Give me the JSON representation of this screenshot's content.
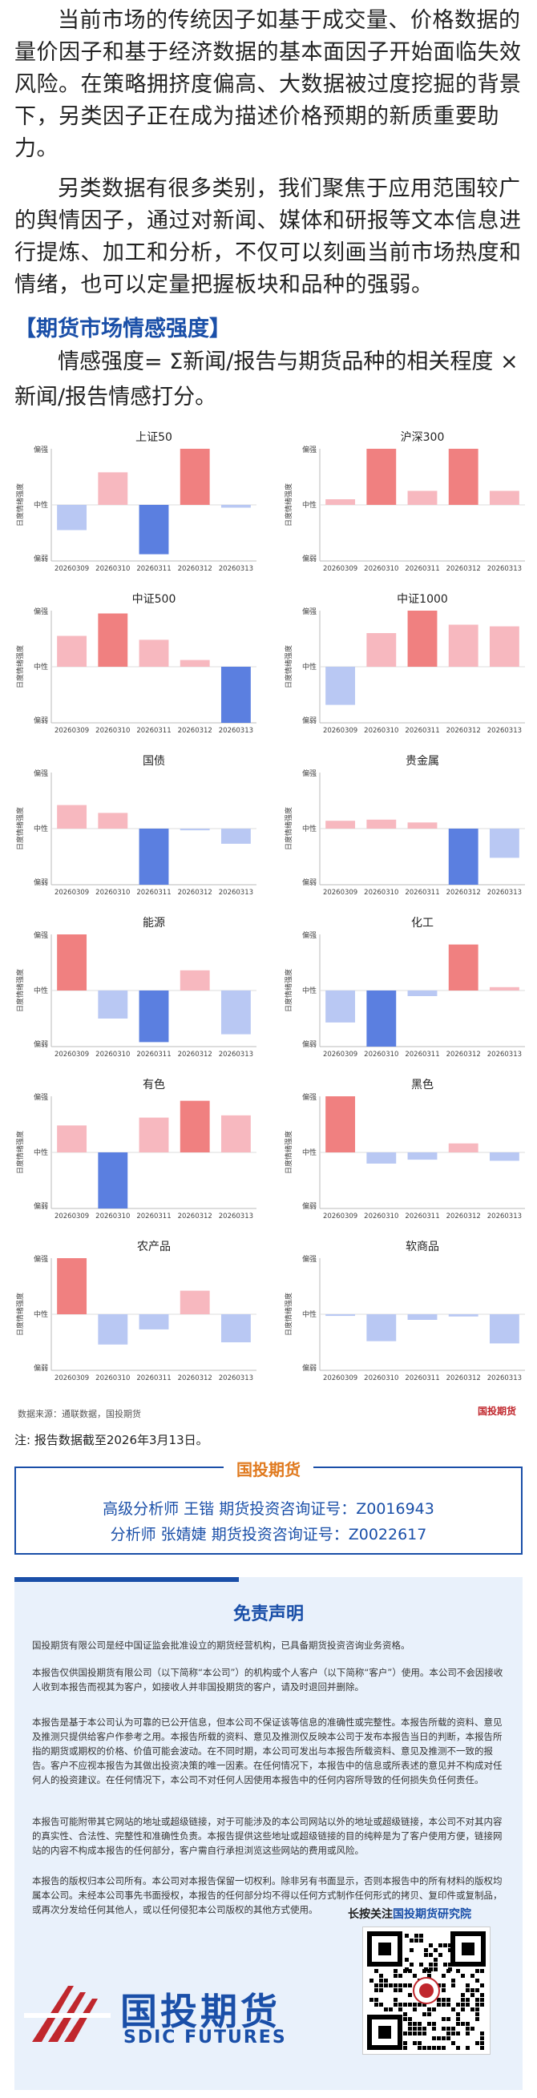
{
  "intro": {
    "p1": "当前市场的传统因子如基于成交量、价格数据的量价因子和基于经济数据的基本面因子开始面临失效风险。在策略拥挤度偏高、大数据被过度挖掘的背景下，另类因子正在成为描述价格预期的新质重要助力。",
    "p2": "另类数据有很多类别，我们聚焦于应用范围较广的舆情因子，通过对新闻、媒体和研报等文本信息进行提炼、加工和分析，不仅可以刻画当前市场热度和情绪，也可以定量把握板块和品种的强弱。"
  },
  "section_title": "【期货市场情感强度】",
  "formula": "情感强度= Σ新闻/报告与期货品种的相关程度 ×新闻/报告情感打分。",
  "axis": {
    "ylabel": "日度情绪强度",
    "top": "偏强",
    "mid": "中性",
    "bottom": "偏弱"
  },
  "colors": {
    "pos_strong": "#f08080",
    "pos_light": "#f7b8bf",
    "neg_strong": "#5b7fe0",
    "neg_light": "#b9c8f3",
    "light_purple": "#d9d3ea"
  },
  "chart_data": [
    {
      "type": "bar",
      "title": "上证50",
      "categories": [
        "20260309",
        "20260310",
        "20260311",
        "20260312",
        "20260313"
      ],
      "values": [
        -0.45,
        0.58,
        -0.88,
        1.0,
        -0.05
      ]
    },
    {
      "type": "bar",
      "title": "沪深300",
      "categories": [
        "20260309",
        "20260310",
        "20260311",
        "20260312",
        "20260313"
      ],
      "values": [
        0.1,
        1.0,
        0.25,
        1.0,
        0.25
      ]
    },
    {
      "type": "bar",
      "title": "中证500",
      "categories": [
        "20260309",
        "20260310",
        "20260311",
        "20260312",
        "20260313"
      ],
      "values": [
        0.55,
        0.95,
        0.48,
        0.12,
        -1.0
      ]
    },
    {
      "type": "bar",
      "title": "中证1000",
      "categories": [
        "20260309",
        "20260310",
        "20260311",
        "20260312",
        "20260313"
      ],
      "values": [
        -0.68,
        0.6,
        1.0,
        0.75,
        0.72
      ]
    },
    {
      "type": "bar",
      "title": "国债",
      "categories": [
        "20260309",
        "20260310",
        "20260311",
        "20260312",
        "20260313"
      ],
      "values": [
        0.42,
        0.28,
        -1.0,
        -0.03,
        -0.27
      ]
    },
    {
      "type": "bar",
      "title": "贵金属",
      "categories": [
        "20260309",
        "20260310",
        "20260311",
        "20260312",
        "20260313"
      ],
      "values": [
        0.14,
        0.16,
        0.11,
        -1.0,
        -0.52
      ]
    },
    {
      "type": "bar",
      "title": "能源",
      "categories": [
        "20260309",
        "20260310",
        "20260311",
        "20260312",
        "20260313"
      ],
      "values": [
        1.0,
        -0.5,
        -0.92,
        0.36,
        -0.78
      ]
    },
    {
      "type": "bar",
      "title": "化工",
      "categories": [
        "20260309",
        "20260310",
        "20260311",
        "20260312",
        "20260313"
      ],
      "values": [
        -0.57,
        -1.0,
        -0.1,
        0.82,
        0.06
      ]
    },
    {
      "type": "bar",
      "title": "有色",
      "categories": [
        "20260309",
        "20260310",
        "20260311",
        "20260312",
        "20260313"
      ],
      "values": [
        0.48,
        -1.0,
        0.62,
        0.92,
        0.66
      ]
    },
    {
      "type": "bar",
      "title": "黑色",
      "categories": [
        "20260309",
        "20260310",
        "20260311",
        "20260312",
        "20260313"
      ],
      "values": [
        1.0,
        -0.2,
        -0.13,
        0.16,
        -0.15
      ]
    },
    {
      "type": "bar",
      "title": "农产品",
      "categories": [
        "20260309",
        "20260310",
        "20260311",
        "20260312",
        "20260313"
      ],
      "values": [
        1.0,
        -0.54,
        -0.27,
        0.42,
        -0.5
      ]
    },
    {
      "type": "bar",
      "title": "软商品",
      "categories": [
        "20260309",
        "20260310",
        "20260311",
        "20260312",
        "20260313"
      ],
      "values": [
        -0.03,
        -0.48,
        -0.1,
        -0.04,
        -0.52
      ]
    }
  ],
  "source": "数据来源：通联数据，国投期货",
  "logo_small": "国投期货",
  "note": "注: 报告数据截至2026年3月13日。",
  "analysts": {
    "title": "国投期货",
    "line1": "高级分析师  王锴  期货投资咨询证号：Z0016943",
    "line2": "分析师  张婧婕 期货投资咨询证号：Z0022617"
  },
  "disclaimer": {
    "title": "免责声明",
    "p1": "国投期货有限公司是经中国证监会批准设立的期货经营机构，已具备期货投资咨询业务资格。",
    "p2": "本报告仅供国投期货有限公司（以下简称“本公司”）的机构或个人客户（以下简称“客户”）使用。本公司不会因接收人收到本报告而视其为客户，如接收人并非国投期货的客户，请及时退回并删除。",
    "p3": "本报告是基于本公司认为可靠的已公开信息，但本公司不保证该等信息的准确性或完整性。本报告所载的资料、意见及推测只提供给客户作参考之用。本报告所载的资料、意见及推测仅反映本公司于发布本报告当日的判断，本报告所指的期货或期权的价格、价值可能会波动。在不同时期，本公司可发出与本报告所载资料、意见及推测不一致的报告。客户不应视本报告为其做出投资决策的唯一因素。在任何情况下，本报告中的信息或所表述的意见并不构成对任何人的投资建议。在任何情况下，本公司不对任何人因使用本报告中的任何内容所导致的任何损失负任何责任。",
    "p4": "本报告可能附带其它网站的地址或超级链接，对于可能涉及的本公司网站以外的地址或超级链接，本公司不对其内容的真实性、合法性、完整性和准确性负责。本报告提供这些地址或超级链接的目的纯粹是为了客户使用方便，链接网站的内容不构成本报告的任何部分，客户需自行承担浏览这些网站的费用或风险。",
    "p5": "本报告的版权归本公司所有。本公司对本报告保留一切权利。除非另有书面显示，否则本报告中的所有材料的版权均属本公司。未经本公司事先书面授权，本报告的任何部分均不得以任何方式制作任何形式的拷贝、复印件或复制品，或再次分发给任何其他人，或以任何侵犯本公司版权的其他方式使用。"
  },
  "follow": {
    "prefix": "长按关注",
    "name": "国投期货研究院"
  },
  "brand": {
    "cn": "国投期货",
    "en": "SDIC FUTURES"
  }
}
